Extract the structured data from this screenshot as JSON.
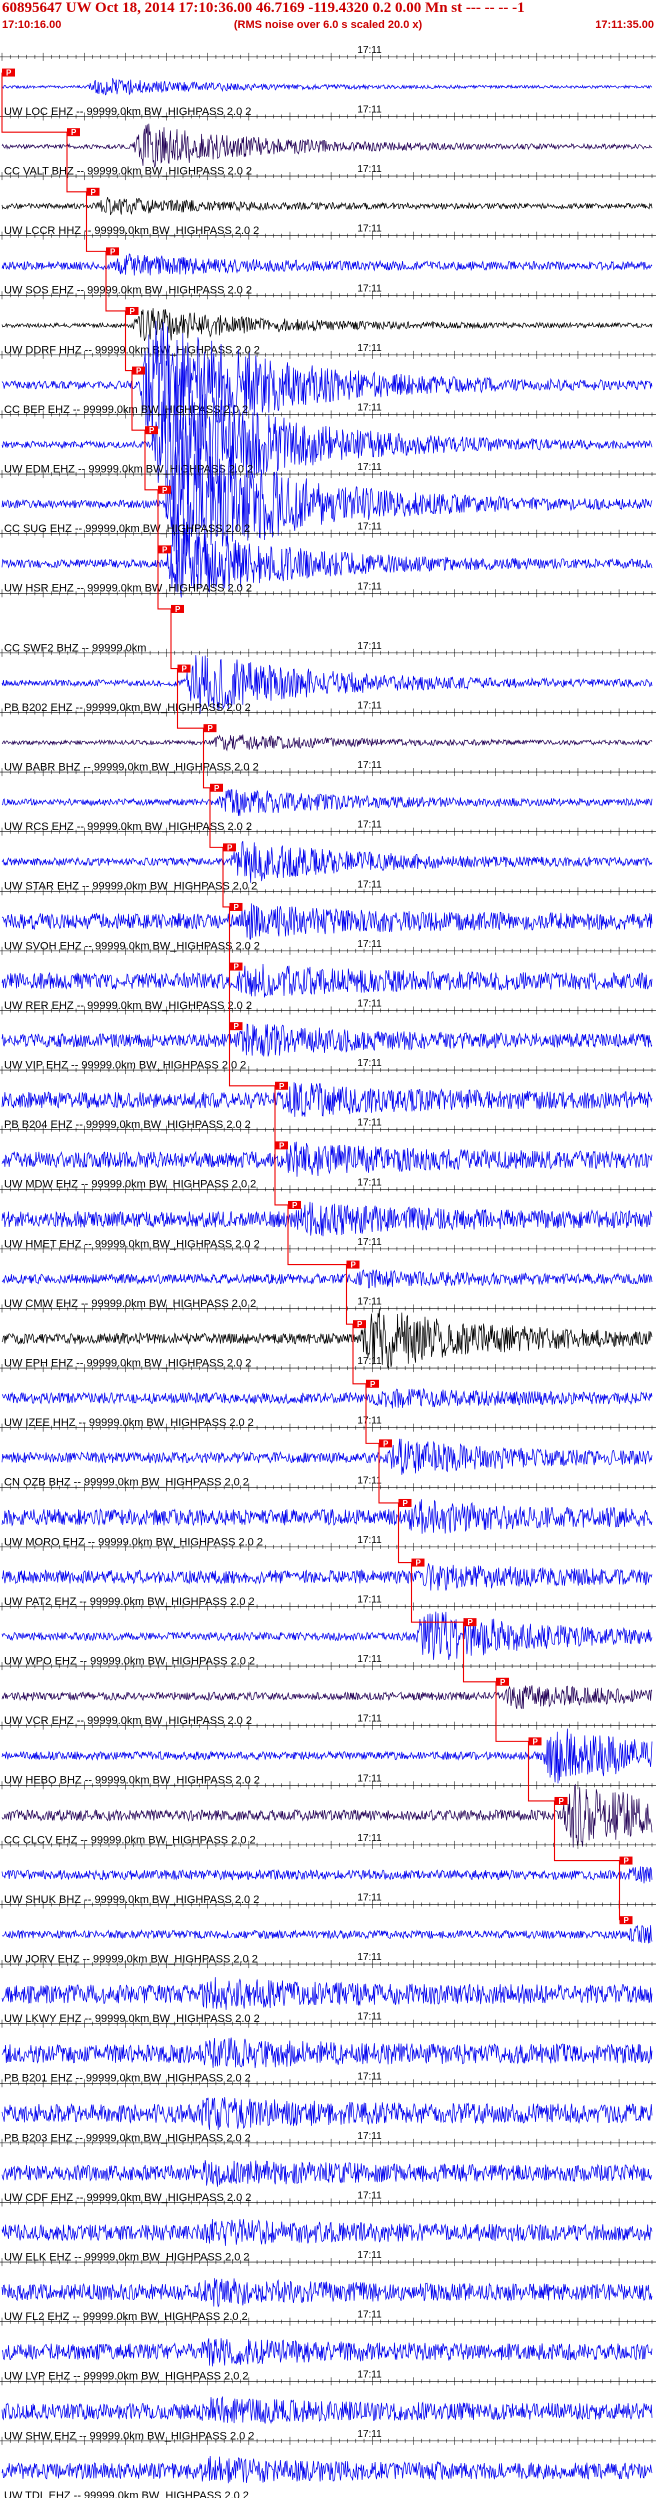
{
  "header": {
    "title": "60895647 UW Oct 18, 2014 17:10:36.00   46.7169 -119.4320  0.2 0.00 Mn st --- -- --  -1",
    "subtitle": "(RMS noise over 6.0 s scaled 20.0 x)",
    "start_time": "17:10:16.00",
    "end_time": "17:11:35.00"
  },
  "colors": {
    "trace_blue": "#0000ee",
    "trace_black": "#000000",
    "pick_red": "#ee0000",
    "grid": "#000000"
  },
  "minute_label": "17:11",
  "traces": [
    {
      "label": "UW LOC EHZ -- 99999.0km BW_HIGHPASS  2.0  2",
      "color": "#0000ee",
      "pick": "P",
      "pick_t": 0.0,
      "onset": 0.13,
      "amp": 0.35,
      "noise": 0.05
    },
    {
      "label": "CC VALT BHZ -- 99999.0km BW_HIGHPASS  2.0  2",
      "color": "#220055",
      "pick": "P",
      "pick_t": 0.1,
      "onset": 0.2,
      "amp": 0.9,
      "noise": 0.08
    },
    {
      "label": "UW LCCR HHZ -- 99999.0km BW_HIGHPASS  2.0  2",
      "color": "#000000",
      "pick": "P",
      "pick_t": 0.13,
      "onset": 0.14,
      "amp": 0.3,
      "noise": 0.1
    },
    {
      "label": "UW SOS EHZ -- 99999.0km BW_HIGHPASS  2.0  2",
      "color": "#0000ee",
      "pick": "P",
      "pick_t": 0.16,
      "onset": 0.17,
      "amp": 0.35,
      "noise": 0.15
    },
    {
      "label": "UW DDRF HHZ -- 99999.0km BW_HIGHPASS  2.0  2",
      "color": "#000000",
      "pick": "P",
      "pick_t": 0.19,
      "onset": 0.2,
      "amp": 0.7,
      "noise": 0.08
    },
    {
      "label": "CC BEP EHZ -- 99999.0km BW_HIGHPASS  2.0  2",
      "color": "#0000ee",
      "pick": "P",
      "pick_t": 0.2,
      "onset": 0.21,
      "amp": 3.0,
      "noise": 0.15
    },
    {
      "label": "UW EDM EHZ -- 99999.0km BW_HIGHPASS  2.0  2",
      "color": "#0000ee",
      "pick": "P",
      "pick_t": 0.22,
      "onset": 0.23,
      "amp": 3.0,
      "noise": 0.12
    },
    {
      "label": "CC SUG EHZ -- 99999.0km BW_HIGHPASS  2.0  2",
      "color": "#0000ee",
      "pick": "P",
      "pick_t": 0.24,
      "onset": 0.25,
      "amp": 3.0,
      "noise": 0.15
    },
    {
      "label": "UW HSR EHZ -- 99999.0km BW_HIGHPASS  2.0  2",
      "color": "#0000ee",
      "pick": "P",
      "pick_t": 0.24,
      "onset": 0.25,
      "amp": 1.5,
      "noise": 0.15
    },
    {
      "label": "CC SWF2 BHZ -- 99999.0km",
      "color": "#ffffff",
      "pick": "P",
      "pick_t": 0.26,
      "onset": 0.27,
      "amp": 0,
      "noise": 0
    },
    {
      "label": "PB B202 EHZ -- 99999.0km BW_HIGHPASS  2.0  2",
      "color": "#0000ee",
      "pick": "P",
      "pick_t": 0.27,
      "onset": 0.28,
      "amp": 1.3,
      "noise": 0.12
    },
    {
      "label": "UW BABR BHZ -- 99999.0km BW_HIGHPASS  2.0  2",
      "color": "#220055",
      "pick": "P",
      "pick_t": 0.31,
      "onset": 0.32,
      "amp": 0.3,
      "noise": 0.08
    },
    {
      "label": "UW RCS EHZ -- 99999.0km BW_HIGHPASS  2.0  2",
      "color": "#0000ee",
      "pick": "P",
      "pick_t": 0.32,
      "onset": 0.33,
      "amp": 0.5,
      "noise": 0.12
    },
    {
      "label": "UW STAR EHZ -- 99999.0km BW_HIGHPASS  2.0  2",
      "color": "#0000ee",
      "pick": "P",
      "pick_t": 0.34,
      "onset": 0.35,
      "amp": 0.8,
      "noise": 0.14
    },
    {
      "label": "UW SVOH EHZ -- 99999.0km BW_HIGHPASS  2.0  2",
      "color": "#0000ee",
      "pick": "P",
      "pick_t": 0.35,
      "onset": 0.36,
      "amp": 0.45,
      "noise": 0.3
    },
    {
      "label": "UW RER EHZ -- 99999.0km BW_HIGHPASS  2.0  2",
      "color": "#0000ee",
      "pick": "P",
      "pick_t": 0.35,
      "onset": 0.36,
      "amp": 0.45,
      "noise": 0.3
    },
    {
      "label": "UW VIP EHZ -- 99999.0km BW_HIGHPASS  2.0  2",
      "color": "#0000ee",
      "pick": "P",
      "pick_t": 0.35,
      "onset": 0.36,
      "amp": 0.5,
      "noise": 0.25
    },
    {
      "label": "PB B204 EHZ -- 99999.0km BW_HIGHPASS  2.0  2",
      "color": "#0000ee",
      "pick": "P",
      "pick_t": 0.42,
      "onset": 0.43,
      "amp": 0.45,
      "noise": 0.3
    },
    {
      "label": "UW MDW EHZ -- 99999.0km BW_HIGHPASS  2.0  2",
      "color": "#0000ee",
      "pick": "P",
      "pick_t": 0.42,
      "onset": 0.43,
      "amp": 0.45,
      "noise": 0.3
    },
    {
      "label": "UW HMET EHZ -- 99999.0km BW_HIGHPASS  2.0  2",
      "color": "#0000ee",
      "pick": "P",
      "pick_t": 0.44,
      "onset": 0.45,
      "amp": 0.45,
      "noise": 0.3
    },
    {
      "label": "UW CMW EHZ -- 99999.0km BW_HIGHPASS  2.0  2",
      "color": "#0000ee",
      "pick": "P",
      "pick_t": 0.53,
      "onset": 0.54,
      "amp": 0.2,
      "noise": 0.18
    },
    {
      "label": "UW EPH EHZ -- 99999.0km BW_HIGHPASS  2.0  2",
      "color": "#000000",
      "pick": "P",
      "pick_t": 0.54,
      "onset": 0.55,
      "amp": 1.2,
      "noise": 0.2
    },
    {
      "label": "UW IZEE HHZ -- 99999.0km BW_HIGHPASS  2.0  2",
      "color": "#0000ee",
      "pick": "P",
      "pick_t": 0.56,
      "onset": 0.57,
      "amp": 0.25,
      "noise": 0.2
    },
    {
      "label": "CN OZB BHZ -- 99999.0km BW_HIGHPASS  2.0  2",
      "color": "#0000ee",
      "pick": "P",
      "pick_t": 0.58,
      "onset": 0.59,
      "amp": 0.6,
      "noise": 0.2
    },
    {
      "label": "UW MORO EHZ -- 99999.0km BW_HIGHPASS  2.0  2",
      "color": "#0000ee",
      "pick": "P",
      "pick_t": 0.61,
      "onset": 0.62,
      "amp": 0.45,
      "noise": 0.3
    },
    {
      "label": "UW PAT2 EHZ -- 99999.0km BW_HIGHPASS  2.0  2",
      "color": "#0000ee",
      "pick": "P",
      "pick_t": 0.63,
      "onset": 0.64,
      "amp": 0.35,
      "noise": 0.25
    },
    {
      "label": "UW WPO EHZ -- 99999.0km BW_HIGHPASS  2.0  2",
      "color": "#0000ee",
      "pick": "P",
      "pick_t": 0.71,
      "onset": 0.63,
      "amp": 1.1,
      "noise": 0.15
    },
    {
      "label": "UW VCR EHZ -- 99999.0km BW_HIGHPASS  2.0  2",
      "color": "#220055",
      "pick": "P",
      "pick_t": 0.76,
      "onset": 0.77,
      "amp": 0.4,
      "noise": 0.15
    },
    {
      "label": "UW HEBO BHZ -- 99999.0km BW_HIGHPASS  2.0  2",
      "color": "#0000ee",
      "pick": "P",
      "pick_t": 0.81,
      "onset": 0.83,
      "amp": 1.1,
      "noise": 0.15
    },
    {
      "label": "CC CLCV EHZ -- 99999.0km BW_HIGHPASS  2.0  2",
      "color": "#220055",
      "pick": "P",
      "pick_t": 0.85,
      "onset": 0.86,
      "amp": 1.2,
      "noise": 0.2
    },
    {
      "label": "UW SHUK BHZ -- 99999.0km BW_HIGHPASS  2.0  2",
      "color": "#0000ee",
      "pick": "P",
      "pick_t": 0.95,
      "onset": 0.96,
      "amp": 0.2,
      "noise": 0.18
    },
    {
      "label": "UW JORV EHZ -- 99999.0km BW_HIGHPASS  2.0  2",
      "color": "#0000ee",
      "pick": "P",
      "pick_t": 0.95,
      "onset": 0.96,
      "amp": 0.25,
      "noise": 0.15
    },
    {
      "label": "UW LKWY EHZ -- 99999.0km BW_HIGHPASS  2.0  2",
      "color": "#0000ee",
      "pick": "",
      "pick_t": -1,
      "onset": 0.3,
      "amp": 0.35,
      "noise": 0.35
    },
    {
      "label": "PB B201 EHZ -- 99999.0km BW_HIGHPASS  2.0  2",
      "color": "#0000ee",
      "pick": "",
      "pick_t": -1,
      "onset": 0.3,
      "amp": 0.35,
      "noise": 0.35
    },
    {
      "label": "PB B203 EHZ -- 99999.0km BW_HIGHPASS  2.0  2",
      "color": "#0000ee",
      "pick": "",
      "pick_t": -1,
      "onset": 0.3,
      "amp": 0.35,
      "noise": 0.35
    },
    {
      "label": "UW CDF EHZ -- 99999.0km BW_HIGHPASS  2.0  2",
      "color": "#0000ee",
      "pick": "",
      "pick_t": -1,
      "onset": 0.3,
      "amp": 0.3,
      "noise": 0.3
    },
    {
      "label": "UW ELK EHZ -- 99999.0km BW_HIGHPASS  2.0  2",
      "color": "#0000ee",
      "pick": "",
      "pick_t": -1,
      "onset": 0.3,
      "amp": 0.3,
      "noise": 0.3
    },
    {
      "label": "UW FL2 EHZ -- 99999.0km BW_HIGHPASS  2.0  2",
      "color": "#0000ee",
      "pick": "",
      "pick_t": -1,
      "onset": 0.3,
      "amp": 0.3,
      "noise": 0.3
    },
    {
      "label": "UW LVP EHZ -- 99999.0km BW_HIGHPASS  2.0  2",
      "color": "#0000ee",
      "pick": "",
      "pick_t": -1,
      "onset": 0.3,
      "amp": 0.3,
      "noise": 0.3
    },
    {
      "label": "UW SHW EHZ -- 99999.0km BW_HIGHPASS  2.0  2",
      "color": "#0000ee",
      "pick": "",
      "pick_t": -1,
      "onset": 0.3,
      "amp": 0.3,
      "noise": 0.3
    },
    {
      "label": "UW TDL EHZ -- 99999.0km BW_HIGHPASS  2.0  2",
      "color": "#0000ee",
      "pick": "",
      "pick_t": -1,
      "onset": 0.3,
      "amp": 0.3,
      "noise": 0.3
    }
  ]
}
